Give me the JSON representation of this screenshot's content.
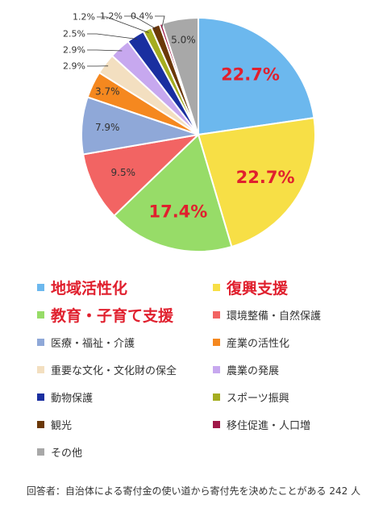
{
  "chart_data": {
    "type": "pie",
    "slices": [
      {
        "label": "地域活性化",
        "value": 22.7,
        "value_label": "22.7%",
        "color": "#6cb8ee"
      },
      {
        "label": "復興支援",
        "value": 22.7,
        "value_label": "22.7%",
        "color": "#f7df46"
      },
      {
        "label": "教育・子育て支援",
        "value": 17.4,
        "value_label": "17.4%",
        "color": "#97dc68"
      },
      {
        "label": "環境整備・自然保護",
        "value": 9.5,
        "value_label": "9.5%",
        "color": "#f26463"
      },
      {
        "label": "医療・福祉・介護",
        "value": 7.9,
        "value_label": "7.9%",
        "color": "#8fa8d8"
      },
      {
        "label": "産業の活性化",
        "value": 3.7,
        "value_label": "3.7%",
        "color": "#f5881f"
      },
      {
        "label": "重要な文化・文化財の保全",
        "value": 2.9,
        "value_label": "2.9%",
        "color": "#f3dfc0"
      },
      {
        "label": "農業の発展",
        "value": 2.9,
        "value_label": "2.9%",
        "color": "#c7a8ef"
      },
      {
        "label": "動物保護",
        "value": 2.5,
        "value_label": "2.5%",
        "color": "#1a2fa0"
      },
      {
        "label": "スポーツ振興",
        "value": 1.2,
        "value_label": "1.2%",
        "color": "#a5ad20"
      },
      {
        "label": "観光",
        "value": 1.2,
        "value_label": "1.2%",
        "color": "#6b3808"
      },
      {
        "label": "移住促進・人口増",
        "value": 0.4,
        "value_label": "0.4%",
        "color": "#a01848"
      },
      {
        "label": "その他",
        "value": 5.0,
        "value_label": "5.0%",
        "color": "#a8a8a8"
      }
    ],
    "start_angle_deg": 0,
    "direction": "clockwise",
    "legend_position": "bottom",
    "highlight_color": "#e0202e",
    "footnote": "回答者：自治体による寄付金の使い道から寄付先を決めたことがある 242 人"
  }
}
